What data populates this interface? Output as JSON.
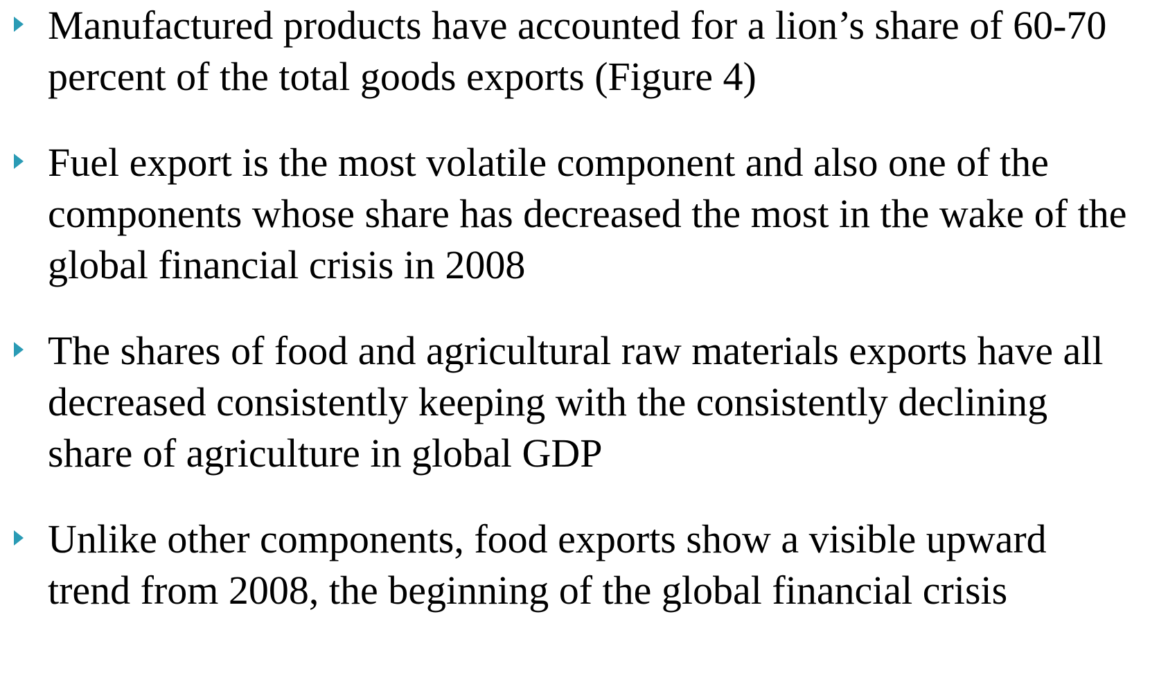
{
  "bullets": [
    "Manufactured products have accounted for a lion’s share of 60-70 percent of the total goods exports (Figure 4)",
    "Fuel export is the most volatile component and also one of the components whose share has decreased the most in the wake of the global financial crisis in 2008",
    "The shares of food and agricultural raw materials exports have all decreased consistently keeping with the consistently declining share of agriculture in global GDP",
    "Unlike other components, food exports show a visible upward trend from 2008, the beginning of the global financial crisis"
  ]
}
